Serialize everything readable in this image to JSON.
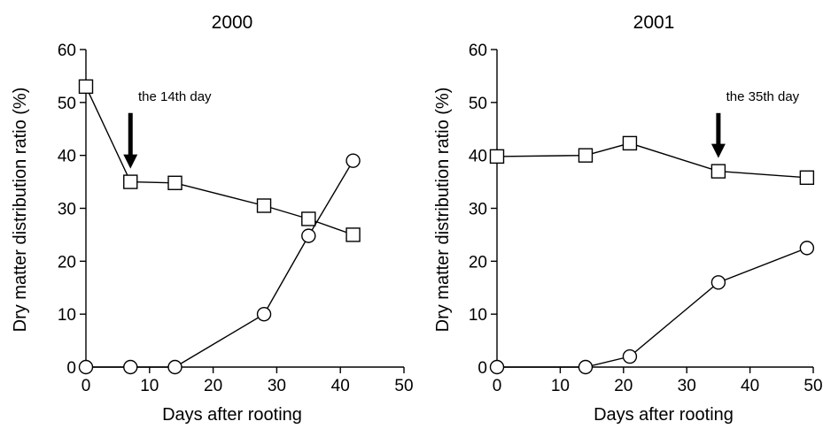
{
  "colors": {
    "ink": "#000000",
    "background": "#ffffff"
  },
  "chart_data": [
    {
      "type": "line",
      "title": "2000",
      "xlabel": "Days after rooting",
      "ylabel": "Dry matter distribution ratio (%)",
      "xlim": [
        0,
        50
      ],
      "ylim": [
        0,
        60
      ],
      "xticks": [
        0,
        10,
        20,
        30,
        40,
        50
      ],
      "yticks": [
        0,
        10,
        20,
        30,
        40,
        50,
        60
      ],
      "grid": false,
      "series": [
        {
          "marker": "square",
          "x": [
            0,
            7,
            14,
            28,
            35,
            42
          ],
          "y": [
            53,
            35,
            34.8,
            30.5,
            28,
            25
          ]
        },
        {
          "marker": "circle",
          "x": [
            0,
            7,
            14,
            28,
            35,
            42
          ],
          "y": [
            0,
            0,
            0,
            10,
            24.8,
            39
          ]
        }
      ],
      "annotations": [
        {
          "text": "the 14th day",
          "arrow_x": 7,
          "arrow_from_y": 48,
          "arrow_to_y": 37.5
        }
      ]
    },
    {
      "type": "line",
      "title": "2001",
      "xlabel": "Days after rooting",
      "ylabel": "Dry matter distribution ratio (%)",
      "xlim": [
        0,
        50
      ],
      "ylim": [
        0,
        60
      ],
      "xticks": [
        0,
        10,
        20,
        30,
        40,
        50
      ],
      "yticks": [
        0,
        10,
        20,
        30,
        40,
        50,
        60
      ],
      "grid": false,
      "series": [
        {
          "marker": "square",
          "x": [
            0,
            14,
            21,
            35,
            49
          ],
          "y": [
            39.8,
            40,
            42.3,
            37,
            35.8
          ]
        },
        {
          "marker": "circle",
          "x": [
            0,
            14,
            21,
            35,
            49
          ],
          "y": [
            0,
            0,
            2,
            16,
            22.5
          ]
        }
      ],
      "annotations": [
        {
          "text": "the 35th day",
          "arrow_x": 35,
          "arrow_from_y": 48,
          "arrow_to_y": 39.5
        }
      ]
    }
  ]
}
